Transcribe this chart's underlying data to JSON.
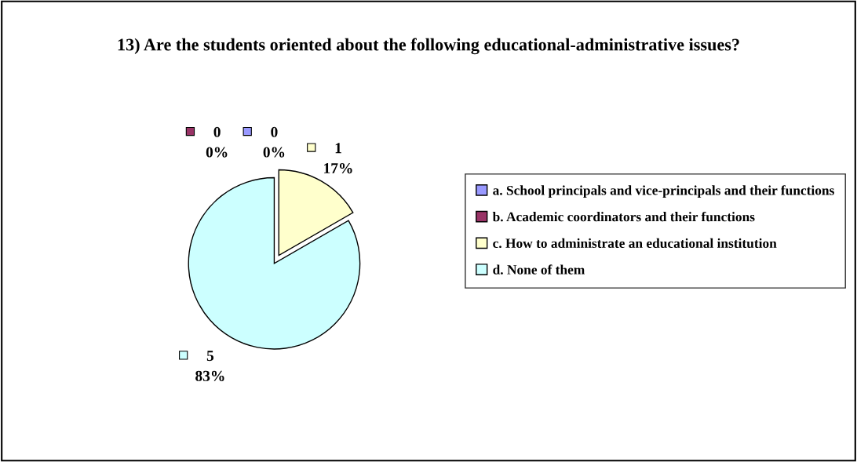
{
  "chart_data": {
    "type": "pie",
    "title": "13) Are the students oriented about the following educational-administrative issues?",
    "categories": [
      "a. School principals and vice-principals and their functions",
      "b. Academic coordinators and their functions",
      "c. How to administrate an educational institution",
      "d. None of them"
    ],
    "values": [
      0,
      0,
      1,
      5
    ],
    "value_labels": [
      "0\n0%",
      "0\n0%",
      "1\n17%",
      "5\n83%"
    ],
    "colors": [
      "#9999ff",
      "#993366",
      "#ffffcc",
      "#ccffff"
    ],
    "legend": "right"
  }
}
